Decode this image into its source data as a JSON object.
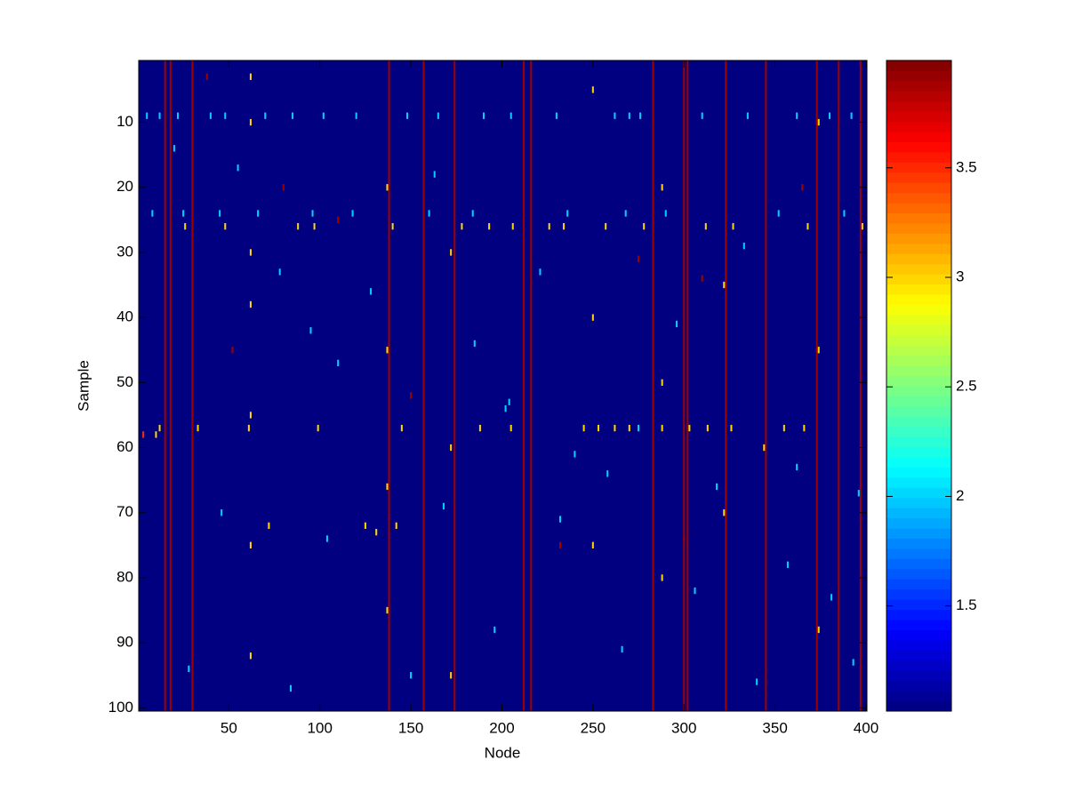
{
  "chart_data": {
    "type": "heatmap",
    "x_label": "Node",
    "y_label": "Sample",
    "xlim": [
      0.5,
      400.5
    ],
    "ylim": [
      100.5,
      0.5
    ],
    "xticks": [
      50,
      100,
      150,
      200,
      250,
      300,
      350,
      400
    ],
    "yticks": [
      10,
      20,
      30,
      40,
      50,
      60,
      70,
      80,
      90,
      100
    ],
    "colormap": "jet",
    "clim": [
      1.02,
      3.99
    ],
    "colorbar_ticks": [
      1.5,
      2,
      2.5,
      3,
      3.5
    ],
    "fill_value": 1.02,
    "stripes": [
      [
        15,
        3.9
      ],
      [
        18,
        3.9
      ],
      [
        30,
        3.9
      ],
      [
        138,
        3.9
      ],
      [
        157,
        3.9
      ],
      [
        174,
        3.9
      ],
      [
        212,
        3.9
      ],
      [
        216,
        3.9
      ],
      [
        283,
        3.9
      ],
      [
        300,
        3.9
      ],
      [
        302,
        3.9
      ],
      [
        323,
        3.9
      ],
      [
        345,
        3.9
      ],
      [
        373,
        3.9
      ],
      [
        385,
        3.9
      ],
      [
        397,
        3.9
      ]
    ],
    "cells": [
      [
        5,
        9,
        2
      ],
      [
        12,
        9,
        2
      ],
      [
        22,
        9,
        2
      ],
      [
        40,
        9,
        2
      ],
      [
        48,
        9,
        2
      ],
      [
        70,
        9,
        2
      ],
      [
        85,
        9,
        2
      ],
      [
        102,
        9,
        2
      ],
      [
        120,
        9,
        2
      ],
      [
        148,
        9,
        2
      ],
      [
        165,
        9,
        2
      ],
      [
        190,
        9,
        2
      ],
      [
        205,
        9,
        2
      ],
      [
        230,
        9,
        2
      ],
      [
        262,
        9,
        2
      ],
      [
        270,
        9,
        2
      ],
      [
        276,
        9,
        2
      ],
      [
        310,
        9,
        2
      ],
      [
        335,
        9,
        2
      ],
      [
        362,
        9,
        2
      ],
      [
        380,
        9,
        2
      ],
      [
        392,
        9,
        2
      ],
      [
        8,
        24,
        2
      ],
      [
        25,
        24,
        2
      ],
      [
        45,
        24,
        2
      ],
      [
        66,
        24,
        2
      ],
      [
        96,
        24,
        2
      ],
      [
        118,
        24,
        2
      ],
      [
        160,
        24,
        2
      ],
      [
        184,
        24,
        2
      ],
      [
        236,
        24,
        2
      ],
      [
        268,
        24,
        2
      ],
      [
        290,
        24,
        2
      ],
      [
        352,
        24,
        2
      ],
      [
        388,
        24,
        2
      ],
      [
        26,
        26,
        3
      ],
      [
        48,
        26,
        3
      ],
      [
        88,
        26,
        3
      ],
      [
        97,
        26,
        3
      ],
      [
        140,
        26,
        3
      ],
      [
        178,
        26,
        3
      ],
      [
        193,
        26,
        3
      ],
      [
        206,
        26,
        3
      ],
      [
        226,
        26,
        3
      ],
      [
        234,
        26,
        3
      ],
      [
        257,
        26,
        3
      ],
      [
        278,
        26,
        3
      ],
      [
        312,
        26,
        3
      ],
      [
        327,
        26,
        3
      ],
      [
        368,
        26,
        3
      ],
      [
        398,
        26,
        3
      ],
      [
        12,
        57,
        3
      ],
      [
        33,
        57,
        3
      ],
      [
        61,
        57,
        3
      ],
      [
        99,
        57,
        3
      ],
      [
        145,
        57,
        3
      ],
      [
        188,
        57,
        3
      ],
      [
        205,
        57,
        3
      ],
      [
        245,
        57,
        3
      ],
      [
        253,
        57,
        3
      ],
      [
        262,
        57,
        3
      ],
      [
        270,
        57,
        3
      ],
      [
        288,
        57,
        3
      ],
      [
        303,
        57,
        3
      ],
      [
        313,
        57,
        3
      ],
      [
        326,
        57,
        3
      ],
      [
        355,
        57,
        3
      ],
      [
        366,
        57,
        3
      ],
      [
        3,
        58,
        3.5
      ],
      [
        10,
        58,
        3
      ],
      [
        275,
        57,
        2
      ],
      [
        202,
        54,
        2
      ],
      [
        204,
        53,
        2
      ],
      [
        142,
        72,
        3
      ],
      [
        125,
        72,
        3
      ],
      [
        131,
        73,
        3
      ],
      [
        72,
        72,
        3
      ],
      [
        62,
        3,
        3
      ],
      [
        62,
        10,
        3
      ],
      [
        62,
        30,
        3
      ],
      [
        62,
        38,
        3
      ],
      [
        62,
        55,
        3
      ],
      [
        62,
        75,
        3
      ],
      [
        62,
        92,
        3
      ],
      [
        137,
        20,
        3
      ],
      [
        137,
        45,
        3
      ],
      [
        137,
        66,
        3
      ],
      [
        137,
        85,
        3
      ],
      [
        172,
        30,
        3
      ],
      [
        172,
        60,
        3
      ],
      [
        172,
        95,
        3
      ],
      [
        250,
        5,
        3
      ],
      [
        250,
        40,
        3
      ],
      [
        250,
        75,
        3
      ],
      [
        288,
        20,
        3
      ],
      [
        288,
        50,
        3
      ],
      [
        288,
        80,
        3
      ],
      [
        374,
        10,
        3
      ],
      [
        374,
        45,
        3
      ],
      [
        374,
        88,
        3
      ],
      [
        322,
        35,
        3
      ],
      [
        322,
        70,
        3
      ],
      [
        344,
        60,
        3
      ],
      [
        20,
        14,
        2
      ],
      [
        55,
        17,
        2
      ],
      [
        78,
        33,
        2
      ],
      [
        95,
        42,
        2
      ],
      [
        110,
        47,
        2
      ],
      [
        128,
        36,
        2
      ],
      [
        163,
        18,
        2
      ],
      [
        185,
        44,
        2
      ],
      [
        221,
        33,
        2
      ],
      [
        240,
        61,
        2
      ],
      [
        258,
        64,
        2
      ],
      [
        296,
        41,
        2
      ],
      [
        318,
        66,
        2
      ],
      [
        333,
        29,
        2
      ],
      [
        357,
        78,
        2
      ],
      [
        381,
        83,
        2
      ],
      [
        393,
        93,
        2
      ],
      [
        28,
        94,
        2
      ],
      [
        84,
        97,
        2
      ],
      [
        150,
        95,
        2
      ],
      [
        196,
        88,
        2
      ],
      [
        266,
        91,
        2
      ],
      [
        340,
        96,
        2
      ],
      [
        46,
        70,
        2
      ],
      [
        104,
        74,
        2
      ],
      [
        168,
        69,
        2
      ],
      [
        232,
        71,
        2
      ],
      [
        306,
        82,
        2
      ],
      [
        362,
        63,
        2
      ],
      [
        396,
        67,
        2
      ],
      [
        38,
        3,
        3.9
      ],
      [
        80,
        20,
        3.9
      ],
      [
        110,
        25,
        3.9
      ],
      [
        150,
        52,
        3.9
      ],
      [
        232,
        75,
        3.9
      ],
      [
        300,
        74,
        3.9
      ],
      [
        310,
        34,
        3.9
      ],
      [
        365,
        20,
        3.9
      ],
      [
        52,
        45,
        3.9
      ],
      [
        275,
        31,
        3.9
      ]
    ]
  }
}
